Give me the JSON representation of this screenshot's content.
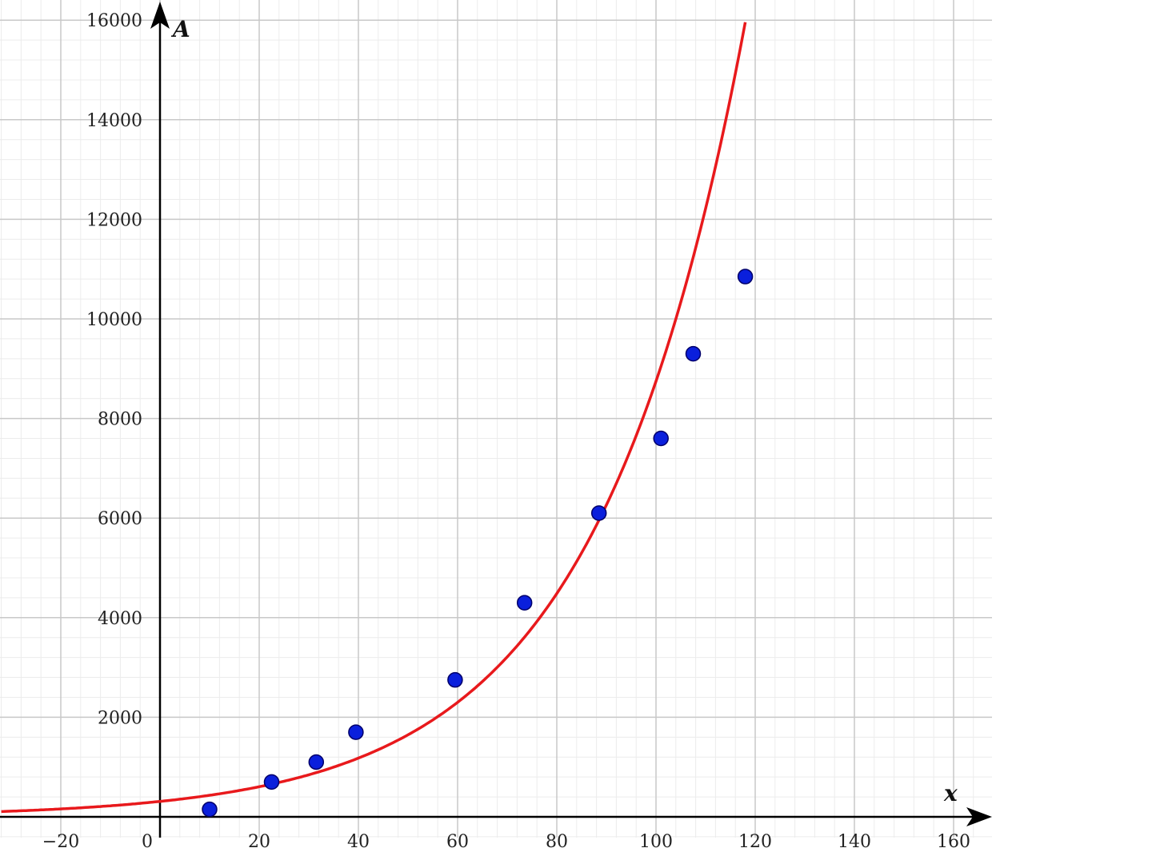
{
  "chart_data": {
    "type": "scatter",
    "title": "",
    "xlabel": "x",
    "ylabel": "A",
    "xlim": [
      -32,
      167
    ],
    "ylim": [
      -400,
      16300
    ],
    "x_ticks": [
      -20,
      0,
      20,
      40,
      60,
      80,
      100,
      120,
      140,
      160
    ],
    "x_tick_labels": [
      "−20",
      "0",
      "20",
      "40",
      "60",
      "80",
      "100",
      "120",
      "140",
      "160"
    ],
    "y_ticks": [
      2000,
      4000,
      6000,
      8000,
      10000,
      12000,
      14000,
      16000
    ],
    "y_tick_labels": [
      "2000",
      "4000",
      "6000",
      "8000",
      "10000",
      "12000",
      "14000",
      "16000"
    ],
    "grid": true,
    "major_grid_step_x": 20,
    "major_grid_step_y": 2000,
    "minor_grid_step_x": 4,
    "minor_grid_step_y": 400,
    "points": [
      {
        "x": 10,
        "y": 150
      },
      {
        "x": 22.5,
        "y": 700
      },
      {
        "x": 31.5,
        "y": 1100
      },
      {
        "x": 39.5,
        "y": 1700
      },
      {
        "x": 59.5,
        "y": 2750
      },
      {
        "x": 73.5,
        "y": 4300
      },
      {
        "x": 88.5,
        "y": 6100
      },
      {
        "x": 101,
        "y": 7600
      },
      {
        "x": 107.5,
        "y": 9300
      },
      {
        "x": 118,
        "y": 10850
      }
    ],
    "curve": {
      "type": "exponential",
      "a": 310,
      "b": 0.0334,
      "x_start": -32,
      "x_end": 118.3
    },
    "colors": {
      "points": "#0a1fdc",
      "point_edge": "#00006a",
      "curve": "#e8191c",
      "axes": "#000000",
      "major_grid": "#c8c8c8",
      "minor_grid": "#ececec"
    }
  }
}
